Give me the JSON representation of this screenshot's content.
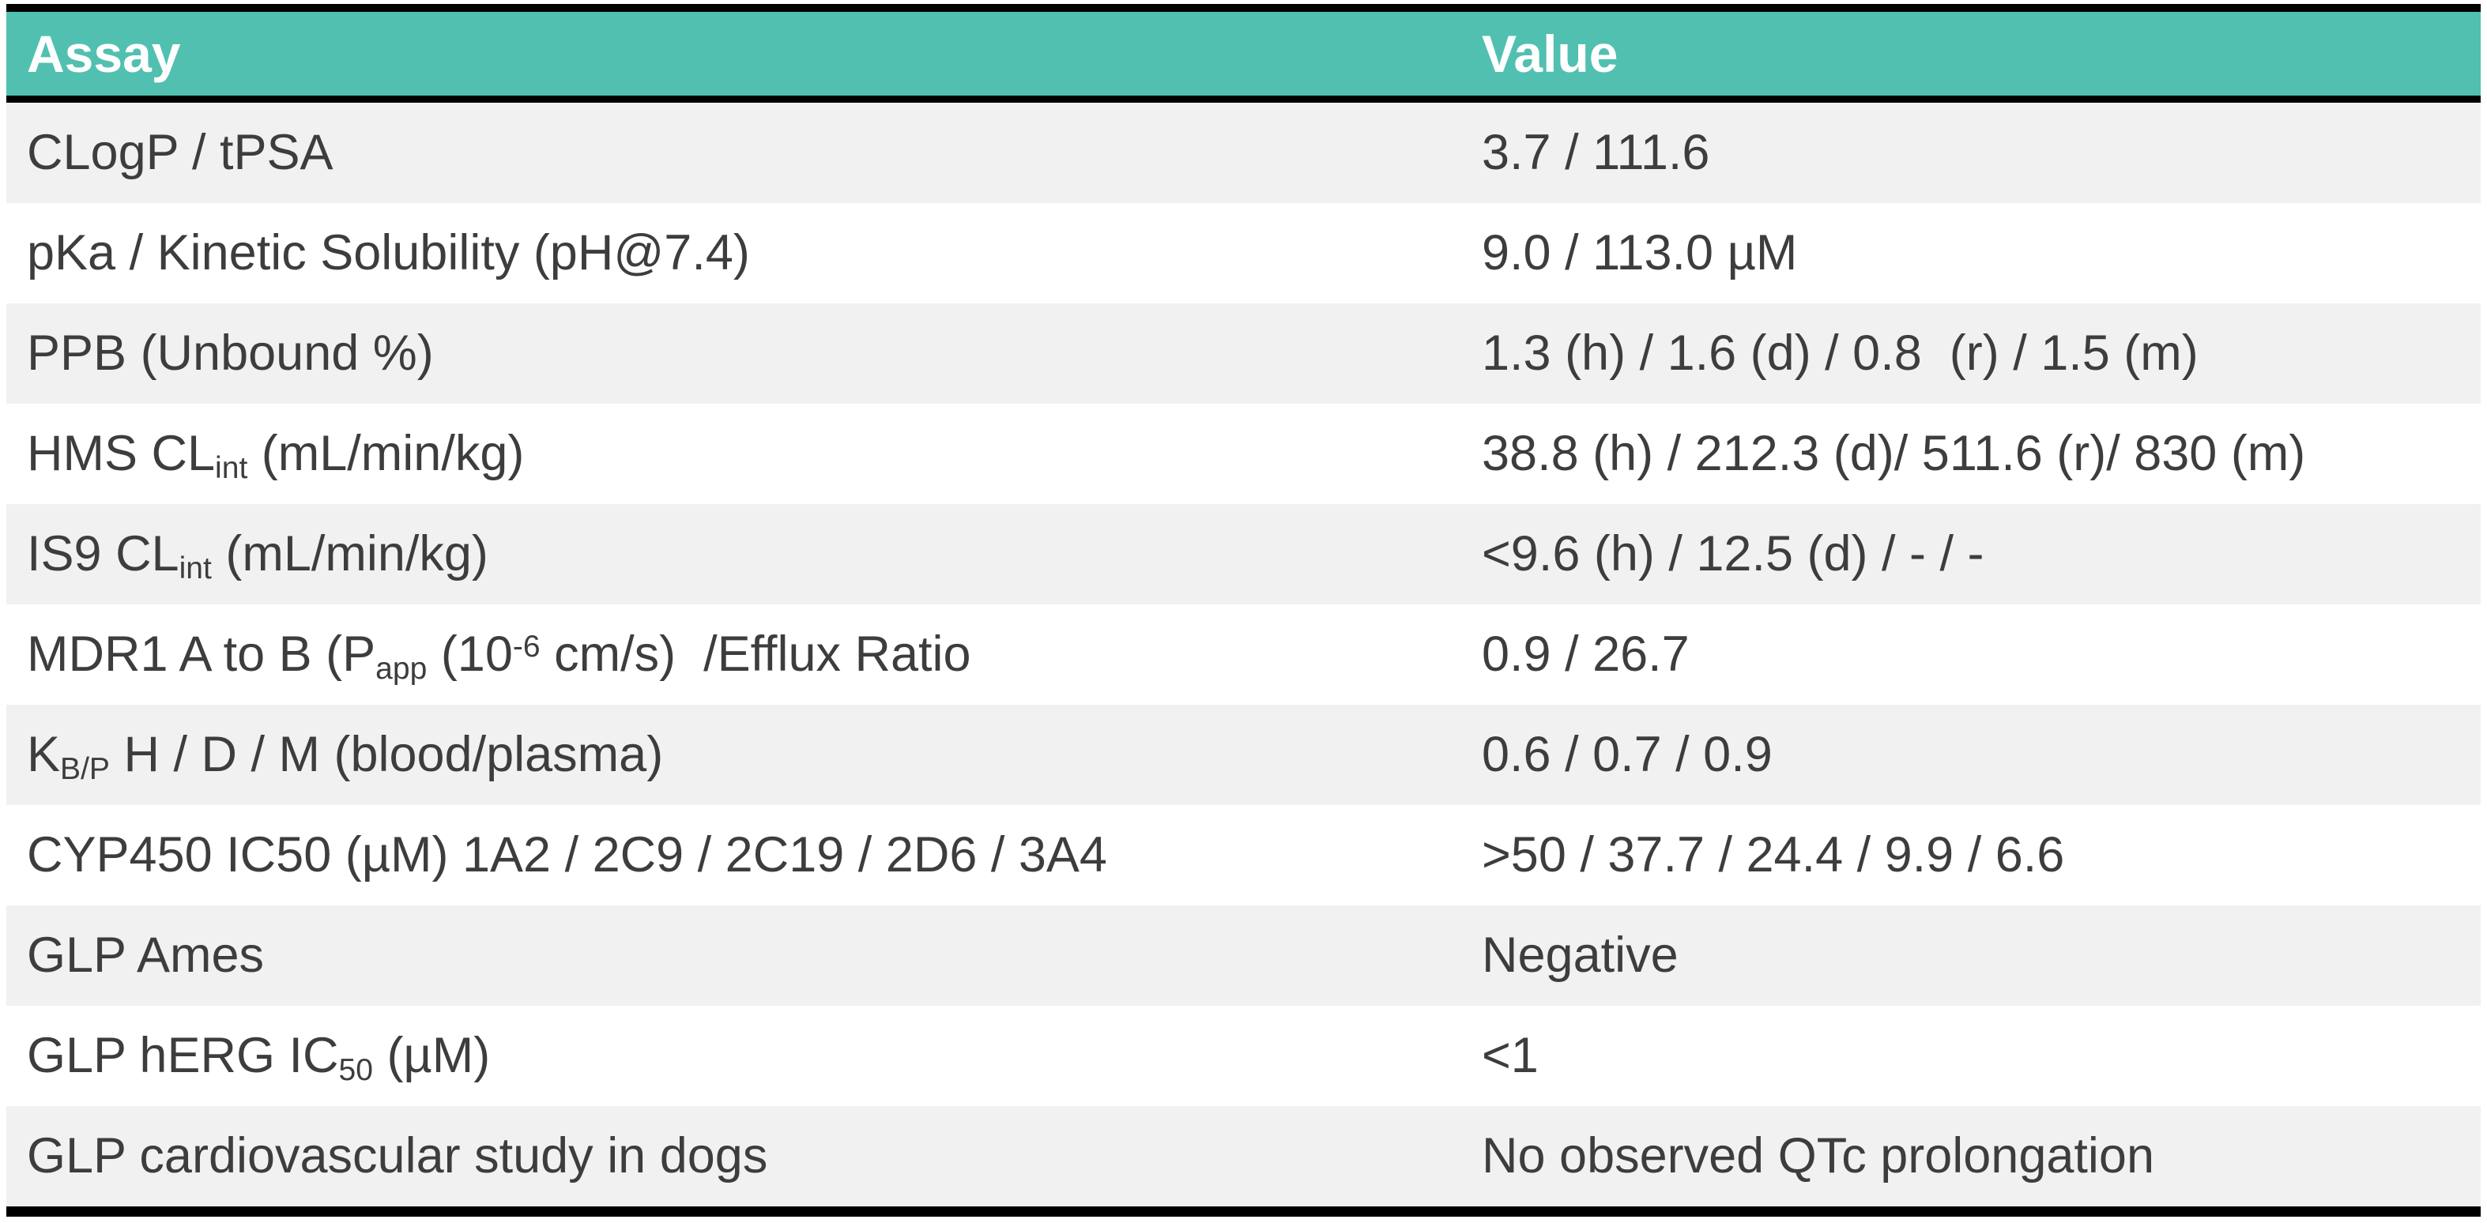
{
  "colors": {
    "header_bg": "#52C0B0",
    "header_text": "#FFFFFF",
    "row": "#FFFFFF",
    "row_alt": "#F1F1F1",
    "border": "#000000",
    "text": "#3D3D3D"
  },
  "table": {
    "columns": [
      {
        "label": "Assay"
      },
      {
        "label": "Value"
      }
    ],
    "rows": [
      {
        "assay": [
          {
            "t": "CLogP / tPSA"
          }
        ],
        "value": [
          {
            "t": "3.7 / 111.6"
          }
        ]
      },
      {
        "assay": [
          {
            "t": "pKa / Kinetic Solubility (pH@7.4)"
          }
        ],
        "value": [
          {
            "t": "9.0 / 113.0 µM"
          }
        ]
      },
      {
        "assay": [
          {
            "t": "PPB (Unbound %)"
          }
        ],
        "value": [
          {
            "t": "1.3 (h) / 1.6 (d) / 0.8  (r) / 1.5 (m)"
          }
        ]
      },
      {
        "assay": [
          {
            "t": "HMS CL"
          },
          {
            "t": "int",
            "s": "sub"
          },
          {
            "t": " (mL/min/kg)"
          }
        ],
        "value": [
          {
            "t": "38.8 (h) / 212.3 (d)/ 511.6 (r)/ 830 (m)"
          }
        ]
      },
      {
        "assay": [
          {
            "t": "IS9 CL"
          },
          {
            "t": "int",
            "s": "sub"
          },
          {
            "t": " (mL/min/kg)"
          }
        ],
        "value": [
          {
            "t": "<9.6 (h) / 12.5 (d) / - / -"
          }
        ]
      },
      {
        "assay": [
          {
            "t": "MDR1 A to B (P"
          },
          {
            "t": "app",
            "s": "sub"
          },
          {
            "t": " (10"
          },
          {
            "t": "-6",
            "s": "sup"
          },
          {
            "t": " cm/s)  /Efflux Ratio"
          }
        ],
        "value": [
          {
            "t": "0.9 / 26.7"
          }
        ]
      },
      {
        "assay": [
          {
            "t": "K"
          },
          {
            "t": "B/P",
            "s": "sub"
          },
          {
            "t": " H / D / M (blood/plasma)"
          }
        ],
        "value": [
          {
            "t": "0.6 / 0.7 / 0.9"
          }
        ]
      },
      {
        "assay": [
          {
            "t": "CYP450 IC50 (µM) 1A2 / 2C9 / 2C19 / 2D6 / 3A4"
          }
        ],
        "value": [
          {
            "t": ">50 / 37.7 / 24.4 / 9.9 / 6.6"
          }
        ]
      },
      {
        "assay": [
          {
            "t": "GLP Ames"
          }
        ],
        "value": [
          {
            "t": "Negative"
          }
        ]
      },
      {
        "assay": [
          {
            "t": "GLP hERG IC"
          },
          {
            "t": "50",
            "s": "sub"
          },
          {
            "t": " (µM)"
          }
        ],
        "value": [
          {
            "t": "<1"
          }
        ]
      },
      {
        "assay": [
          {
            "t": "GLP cardiovascular study in dogs"
          }
        ],
        "value": [
          {
            "t": "No observed QTc prolongation"
          }
        ]
      }
    ]
  },
  "chart_data": {
    "type": "table",
    "columns": [
      "Assay",
      "Value"
    ],
    "rows": [
      [
        "CLogP / tPSA",
        "3.7 / 111.6"
      ],
      [
        "pKa / Kinetic Solubility (pH@7.4)",
        "9.0 / 113.0 µM"
      ],
      [
        "PPB (Unbound %)",
        "1.3 (h) / 1.6 (d) / 0.8  (r) / 1.5 (m)"
      ],
      [
        "HMS CLint (mL/min/kg)",
        "38.8 (h) / 212.3 (d)/ 511.6 (r)/ 830 (m)"
      ],
      [
        "IS9 CLint (mL/min/kg)",
        "<9.6 (h) / 12.5 (d) / - / -"
      ],
      [
        "MDR1 A to B (Papp (10-6 cm/s)  /Efflux Ratio",
        "0.9 / 26.7"
      ],
      [
        "KB/P H / D / M (blood/plasma)",
        "0.6 / 0.7 / 0.9"
      ],
      [
        "CYP450 IC50 (µM) 1A2 / 2C9 / 2C19 / 2D6 / 3A4",
        ">50 / 37.7 / 24.4 / 9.9 / 6.6"
      ],
      [
        "GLP Ames",
        "Negative"
      ],
      [
        "GLP hERG IC50 (µM)",
        "<1"
      ],
      [
        "GLP cardiovascular study in dogs",
        "No observed QTc prolongation"
      ]
    ]
  }
}
